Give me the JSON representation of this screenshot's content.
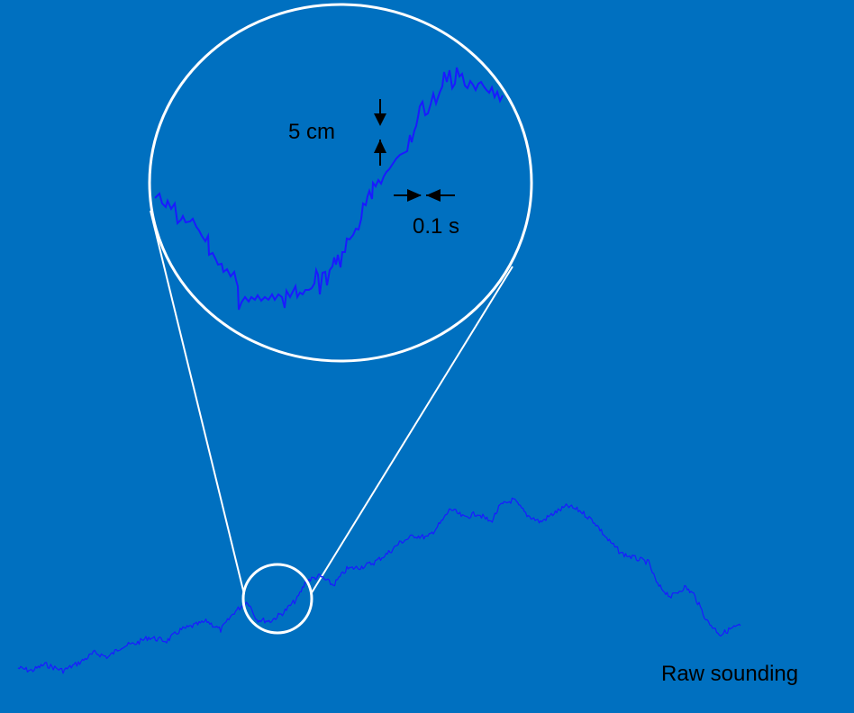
{
  "annotations": {
    "vertical_scale": "5 cm",
    "horizontal_scale": "0.1 s",
    "caption": "Raw sounding"
  },
  "colors": {
    "background": "#0070c0",
    "trace": "#1a1aff",
    "circle": "#ffffff",
    "arrows": "#000000"
  }
}
